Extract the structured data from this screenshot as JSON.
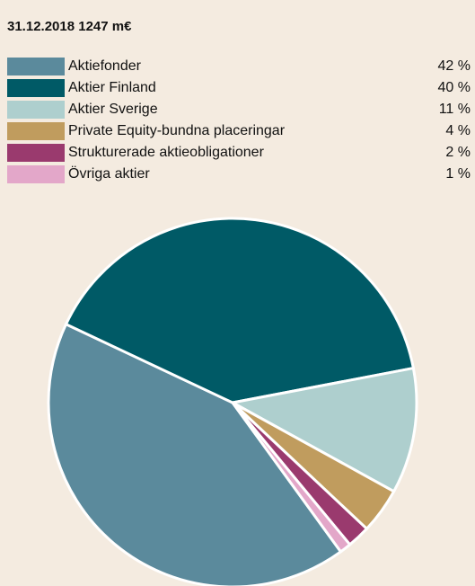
{
  "chart_data": {
    "type": "pie",
    "title": "31.12.2018 1247 m€",
    "categories": [
      "Aktiefonder",
      "Aktier Finland",
      "Aktier Sverige",
      "Private Equity-bundna placeringar",
      "Strukturerade aktieobligationer",
      "Övriga aktier"
    ],
    "values": [
      42,
      40,
      11,
      4,
      2,
      1
    ],
    "value_labels": [
      "42 %",
      "40 %",
      "11 %",
      "4 %",
      "2 %",
      "1 %"
    ],
    "colors": [
      "#5b8a9c",
      "#005a66",
      "#aecfce",
      "#c09c5e",
      "#9a3a6e",
      "#e3a7c9"
    ]
  }
}
